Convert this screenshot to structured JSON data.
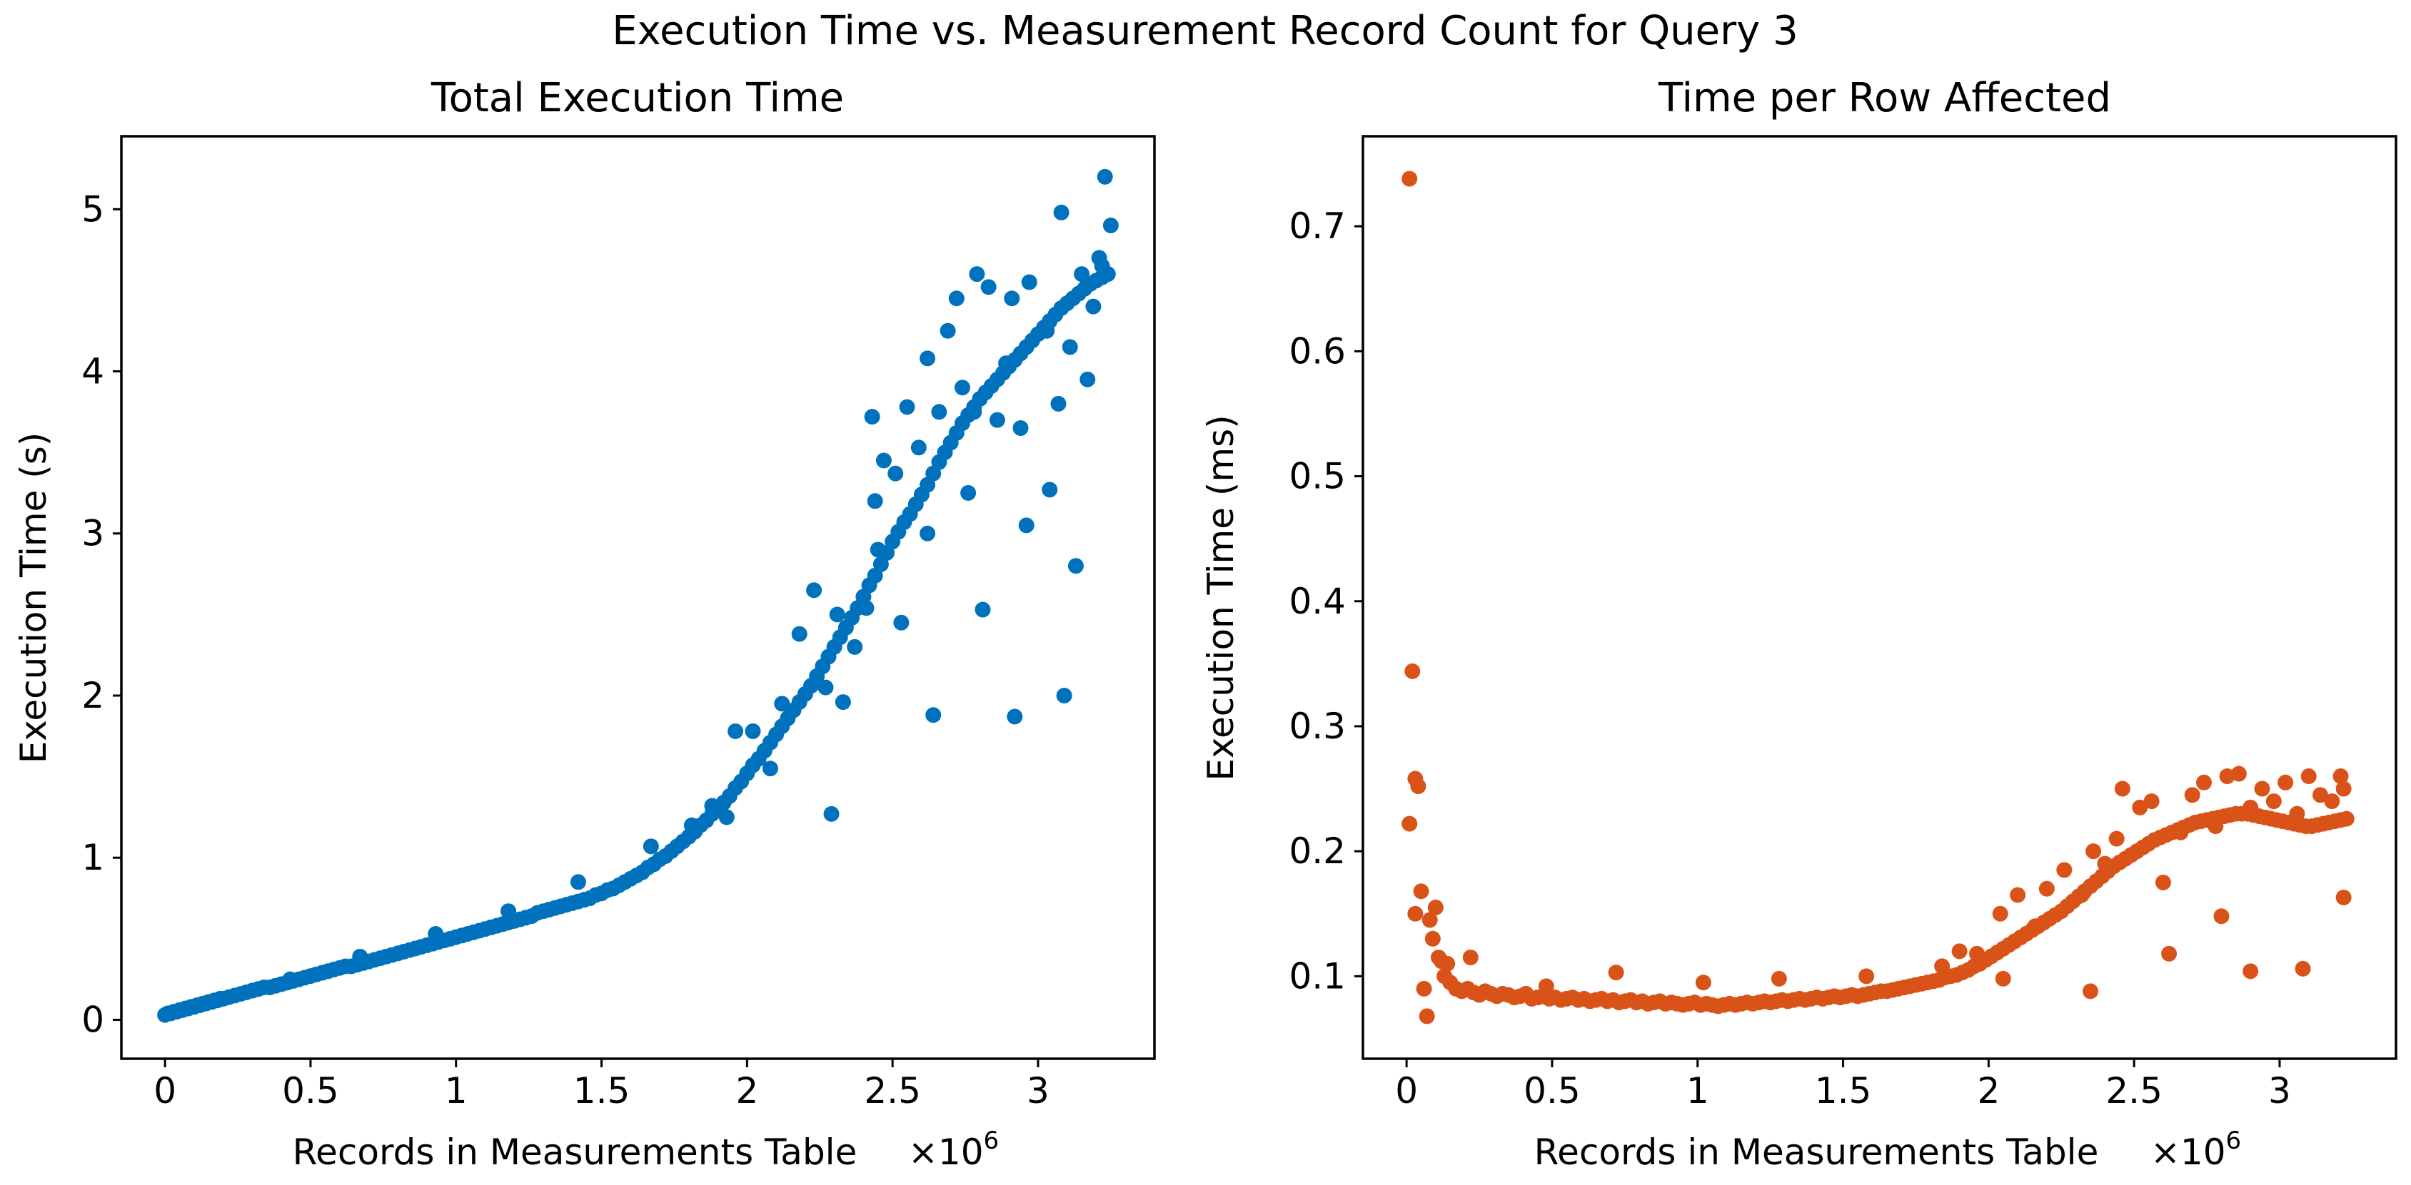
{
  "figure": {
    "suptitle": "Execution Time vs. Measurement Record Count for Query 3"
  },
  "chart_data": [
    {
      "type": "scatter",
      "title": "Total Execution Time",
      "xlabel": "Records in Measurements Table",
      "ylabel": "Execution Time (s)",
      "x_offset_label": "×10",
      "x_offset_exp": "6",
      "xlim": [
        -0.15,
        3.4
      ],
      "ylim": [
        -0.24,
        5.45
      ],
      "xticks": [
        0,
        0.5,
        1,
        1.5,
        2,
        2.5,
        3
      ],
      "xtick_labels": [
        "0",
        "0.5",
        "1",
        "1.5",
        "2",
        "2.5",
        "3"
      ],
      "yticks": [
        0,
        1,
        2,
        3,
        4,
        5
      ],
      "ytick_labels": [
        "0",
        "1",
        "2",
        "3",
        "4",
        "5"
      ],
      "marker_color": "#0072BD",
      "x_unit_multiplier": 1000000,
      "series": [
        {
          "name": "Total Execution Time",
          "x": [
            0.0,
            0.01,
            0.02,
            0.03,
            0.04,
            0.05,
            0.06,
            0.07,
            0.08,
            0.09,
            0.1,
            0.11,
            0.12,
            0.13,
            0.14,
            0.15,
            0.16,
            0.17,
            0.18,
            0.19,
            0.2,
            0.22,
            0.24,
            0.26,
            0.28,
            0.3,
            0.32,
            0.34,
            0.36,
            0.38,
            0.4,
            0.42,
            0.44,
            0.46,
            0.48,
            0.5,
            0.52,
            0.54,
            0.56,
            0.58,
            0.6,
            0.62,
            0.64,
            0.66,
            0.68,
            0.7,
            0.72,
            0.74,
            0.76,
            0.78,
            0.8,
            0.82,
            0.84,
            0.86,
            0.88,
            0.9,
            0.92,
            0.94,
            0.96,
            0.98,
            1.0,
            1.02,
            1.04,
            1.06,
            1.08,
            1.1,
            1.12,
            1.14,
            1.16,
            1.18,
            1.2,
            1.22,
            1.24,
            1.26,
            1.28,
            1.3,
            1.32,
            1.34,
            1.36,
            1.38,
            1.4,
            1.42,
            1.44,
            1.46,
            1.48,
            1.5,
            1.52,
            1.54,
            1.56,
            1.58,
            1.6,
            1.62,
            1.64,
            1.66,
            1.68,
            1.7,
            1.72,
            1.74,
            1.76,
            1.78,
            1.8,
            1.82,
            1.84,
            1.86,
            1.88,
            1.9,
            1.92,
            1.94,
            1.96,
            1.98,
            2.0,
            2.02,
            2.04,
            2.06,
            2.08,
            2.1,
            2.12,
            2.14,
            2.16,
            2.18,
            2.2,
            2.22,
            2.24,
            2.26,
            2.28,
            2.3,
            2.32,
            2.34,
            2.36,
            2.38,
            2.4,
            2.42,
            2.44,
            2.46,
            2.48,
            2.5,
            2.52,
            2.54,
            2.56,
            2.58,
            2.6,
            2.62,
            2.64,
            2.66,
            2.68,
            2.7,
            2.72,
            2.74,
            2.76,
            2.78,
            2.8,
            2.82,
            2.84,
            2.86,
            2.88,
            2.9,
            2.92,
            2.94,
            2.96,
            2.98,
            3.0,
            3.02,
            3.04,
            3.06,
            3.08,
            3.1,
            3.12,
            3.14,
            3.16,
            3.18,
            3.2,
            3.22,
            3.24,
            0.43,
            0.67,
            0.93,
            1.18,
            1.42,
            1.67,
            1.81,
            1.88,
            1.93,
            1.96,
            2.02,
            2.08,
            2.12,
            2.18,
            2.23,
            2.27,
            2.31,
            2.33,
            2.37,
            2.41,
            2.43,
            2.45,
            2.47,
            2.51,
            2.55,
            2.59,
            2.62,
            2.66,
            2.69,
            2.72,
            2.74,
            2.76,
            2.79,
            2.83,
            2.86,
            2.89,
            2.91,
            2.94,
            2.97,
            3.03,
            3.07,
            3.08,
            3.11,
            3.15,
            3.17,
            3.19,
            3.21,
            3.22,
            3.23,
            3.25,
            2.29,
            2.44,
            2.53,
            2.64,
            2.81,
            2.96,
            3.04,
            3.13,
            2.92,
            3.09,
            2.62,
            2.78
          ],
          "y": [
            0.03,
            0.04,
            0.04,
            0.05,
            0.05,
            0.06,
            0.06,
            0.07,
            0.07,
            0.08,
            0.08,
            0.09,
            0.09,
            0.1,
            0.1,
            0.11,
            0.11,
            0.12,
            0.12,
            0.13,
            0.13,
            0.14,
            0.15,
            0.16,
            0.17,
            0.18,
            0.19,
            0.2,
            0.2,
            0.21,
            0.22,
            0.23,
            0.24,
            0.25,
            0.26,
            0.27,
            0.28,
            0.29,
            0.3,
            0.31,
            0.32,
            0.33,
            0.33,
            0.34,
            0.35,
            0.36,
            0.37,
            0.38,
            0.39,
            0.4,
            0.41,
            0.42,
            0.43,
            0.44,
            0.45,
            0.46,
            0.47,
            0.48,
            0.49,
            0.5,
            0.51,
            0.52,
            0.53,
            0.54,
            0.55,
            0.56,
            0.57,
            0.58,
            0.59,
            0.6,
            0.61,
            0.62,
            0.63,
            0.64,
            0.66,
            0.67,
            0.68,
            0.69,
            0.7,
            0.71,
            0.72,
            0.73,
            0.74,
            0.75,
            0.77,
            0.78,
            0.8,
            0.81,
            0.83,
            0.85,
            0.87,
            0.89,
            0.91,
            0.94,
            0.96,
            0.99,
            1.01,
            1.04,
            1.07,
            1.1,
            1.13,
            1.16,
            1.2,
            1.23,
            1.27,
            1.3,
            1.34,
            1.38,
            1.43,
            1.47,
            1.52,
            1.57,
            1.61,
            1.66,
            1.71,
            1.76,
            1.81,
            1.86,
            1.91,
            1.96,
            2.01,
            2.06,
            2.12,
            2.18,
            2.24,
            2.3,
            2.36,
            2.42,
            2.48,
            2.54,
            2.61,
            2.68,
            2.74,
            2.81,
            2.88,
            2.95,
            3.01,
            3.07,
            3.12,
            3.18,
            3.24,
            3.3,
            3.37,
            3.44,
            3.5,
            3.56,
            3.62,
            3.68,
            3.73,
            3.78,
            3.83,
            3.87,
            3.91,
            3.95,
            3.99,
            4.03,
            4.07,
            4.11,
            4.15,
            4.19,
            4.23,
            4.27,
            4.31,
            4.35,
            4.39,
            4.42,
            4.45,
            4.48,
            4.51,
            4.54,
            4.56,
            4.58,
            4.6,
            0.25,
            0.39,
            0.53,
            0.67,
            0.85,
            1.07,
            1.2,
            1.32,
            1.25,
            1.78,
            1.78,
            1.55,
            1.95,
            2.38,
            2.65,
            2.05,
            2.5,
            1.96,
            2.3,
            2.54,
            3.72,
            2.9,
            3.45,
            3.37,
            3.78,
            3.53,
            4.08,
            3.75,
            4.25,
            4.45,
            3.9,
            3.25,
            4.6,
            4.52,
            3.7,
            4.05,
            4.45,
            3.65,
            4.55,
            4.25,
            3.8,
            4.98,
            4.15,
            4.6,
            3.95,
            4.4,
            4.7,
            4.65,
            5.2,
            4.9,
            1.27,
            3.2,
            2.45,
            1.88,
            2.53,
            3.05,
            3.27,
            2.8,
            1.87,
            2.0,
            3.0,
            3.75
          ]
        }
      ]
    },
    {
      "type": "scatter",
      "title": "Time per Row Affected",
      "xlabel": "Records in Measurements Table",
      "ylabel": "Execution Time (ms)",
      "x_offset_label": "×10",
      "x_offset_exp": "6",
      "xlim": [
        -0.15,
        3.4
      ],
      "ylim": [
        0.034,
        0.772
      ],
      "xticks": [
        0,
        0.5,
        1,
        1.5,
        2,
        2.5,
        3
      ],
      "xtick_labels": [
        "0",
        "0.5",
        "1",
        "1.5",
        "2",
        "2.5",
        "3"
      ],
      "yticks": [
        0.1,
        0.2,
        0.3,
        0.4,
        0.5,
        0.6,
        0.7
      ],
      "ytick_labels": [
        "0.1",
        "0.2",
        "0.3",
        "0.4",
        "0.5",
        "0.6",
        "0.7"
      ],
      "marker_color": "#D95319",
      "x_unit_multiplier": 1000000,
      "series": [
        {
          "name": "Time per Row Affected",
          "x": [
            0.01,
            0.01,
            0.02,
            0.03,
            0.04,
            0.03,
            0.05,
            0.06,
            0.07,
            0.08,
            0.09,
            0.1,
            0.11,
            0.12,
            0.13,
            0.14,
            0.15,
            0.17,
            0.19,
            0.21,
            0.23,
            0.25,
            0.27,
            0.29,
            0.31,
            0.33,
            0.35,
            0.37,
            0.39,
            0.41,
            0.43,
            0.45,
            0.47,
            0.49,
            0.51,
            0.53,
            0.55,
            0.57,
            0.59,
            0.61,
            0.63,
            0.65,
            0.67,
            0.69,
            0.71,
            0.73,
            0.75,
            0.77,
            0.79,
            0.81,
            0.83,
            0.85,
            0.87,
            0.89,
            0.91,
            0.93,
            0.95,
            0.97,
            0.99,
            1.01,
            1.03,
            1.05,
            1.07,
            1.09,
            1.11,
            1.13,
            1.15,
            1.17,
            1.19,
            1.21,
            1.23,
            1.25,
            1.27,
            1.29,
            1.31,
            1.33,
            1.35,
            1.37,
            1.39,
            1.41,
            1.43,
            1.45,
            1.47,
            1.49,
            1.51,
            1.53,
            1.55,
            1.57,
            1.59,
            1.61,
            1.63,
            1.65,
            1.67,
            1.69,
            1.71,
            1.73,
            1.75,
            1.77,
            1.79,
            1.81,
            1.83,
            1.85,
            1.87,
            1.89,
            1.91,
            1.93,
            1.95,
            1.97,
            1.99,
            2.01,
            2.03,
            2.05,
            2.07,
            2.09,
            2.11,
            2.13,
            2.15,
            2.17,
            2.19,
            2.21,
            2.23,
            2.25,
            2.27,
            2.29,
            2.31,
            2.33,
            2.35,
            2.37,
            2.39,
            2.41,
            2.43,
            2.45,
            2.47,
            2.49,
            2.51,
            2.53,
            2.55,
            2.57,
            2.59,
            2.61,
            2.63,
            2.65,
            2.67,
            2.69,
            2.71,
            2.73,
            2.75,
            2.77,
            2.79,
            2.81,
            2.83,
            2.85,
            2.87,
            2.89,
            2.91,
            2.93,
            2.95,
            2.97,
            2.99,
            3.01,
            3.03,
            3.05,
            3.07,
            3.09,
            3.11,
            3.13,
            3.15,
            3.17,
            3.19,
            3.21,
            3.23,
            0.22,
            0.48,
            0.72,
            1.02,
            1.28,
            1.58,
            1.84,
            1.9,
            1.96,
            2.04,
            2.1,
            2.16,
            2.2,
            2.26,
            2.32,
            2.36,
            2.4,
            2.44,
            2.46,
            2.52,
            2.56,
            2.6,
            2.66,
            2.7,
            2.74,
            2.78,
            2.82,
            2.86,
            2.9,
            2.94,
            2.98,
            3.02,
            3.06,
            3.1,
            3.14,
            3.18,
            3.21,
            3.22,
            2.35,
            2.8,
            2.9,
            3.08,
            3.22,
            2.62,
            2.05
          ],
          "y": [
            0.738,
            0.222,
            0.344,
            0.258,
            0.252,
            0.15,
            0.168,
            0.09,
            0.068,
            0.145,
            0.13,
            0.155,
            0.115,
            0.112,
            0.1,
            0.11,
            0.095,
            0.09,
            0.088,
            0.09,
            0.087,
            0.085,
            0.088,
            0.086,
            0.084,
            0.086,
            0.085,
            0.083,
            0.084,
            0.086,
            0.082,
            0.083,
            0.084,
            0.082,
            0.083,
            0.081,
            0.082,
            0.083,
            0.081,
            0.082,
            0.08,
            0.081,
            0.082,
            0.08,
            0.081,
            0.079,
            0.08,
            0.081,
            0.079,
            0.08,
            0.078,
            0.079,
            0.08,
            0.078,
            0.079,
            0.078,
            0.077,
            0.078,
            0.079,
            0.077,
            0.078,
            0.077,
            0.076,
            0.077,
            0.078,
            0.077,
            0.078,
            0.079,
            0.078,
            0.079,
            0.08,
            0.079,
            0.08,
            0.081,
            0.08,
            0.081,
            0.082,
            0.081,
            0.082,
            0.083,
            0.082,
            0.083,
            0.084,
            0.083,
            0.084,
            0.085,
            0.084,
            0.085,
            0.086,
            0.087,
            0.088,
            0.088,
            0.089,
            0.09,
            0.091,
            0.092,
            0.093,
            0.094,
            0.095,
            0.096,
            0.097,
            0.099,
            0.1,
            0.101,
            0.103,
            0.105,
            0.108,
            0.11,
            0.113,
            0.116,
            0.119,
            0.122,
            0.125,
            0.128,
            0.131,
            0.134,
            0.137,
            0.14,
            0.143,
            0.146,
            0.149,
            0.152,
            0.156,
            0.16,
            0.164,
            0.168,
            0.172,
            0.176,
            0.18,
            0.184,
            0.188,
            0.191,
            0.194,
            0.197,
            0.2,
            0.203,
            0.206,
            0.209,
            0.211,
            0.213,
            0.215,
            0.217,
            0.219,
            0.221,
            0.223,
            0.224,
            0.225,
            0.226,
            0.227,
            0.228,
            0.229,
            0.23,
            0.23,
            0.23,
            0.229,
            0.228,
            0.227,
            0.226,
            0.225,
            0.224,
            0.223,
            0.222,
            0.221,
            0.22,
            0.22,
            0.221,
            0.222,
            0.223,
            0.224,
            0.225,
            0.226,
            0.115,
            0.092,
            0.103,
            0.095,
            0.098,
            0.1,
            0.108,
            0.12,
            0.118,
            0.15,
            0.165,
            0.14,
            0.17,
            0.185,
            0.165,
            0.2,
            0.19,
            0.21,
            0.25,
            0.235,
            0.24,
            0.175,
            0.215,
            0.245,
            0.255,
            0.22,
            0.26,
            0.262,
            0.235,
            0.25,
            0.24,
            0.255,
            0.23,
            0.26,
            0.245,
            0.24,
            0.26,
            0.25,
            0.088,
            0.148,
            0.104,
            0.106,
            0.163,
            0.118,
            0.098
          ]
        }
      ]
    }
  ]
}
